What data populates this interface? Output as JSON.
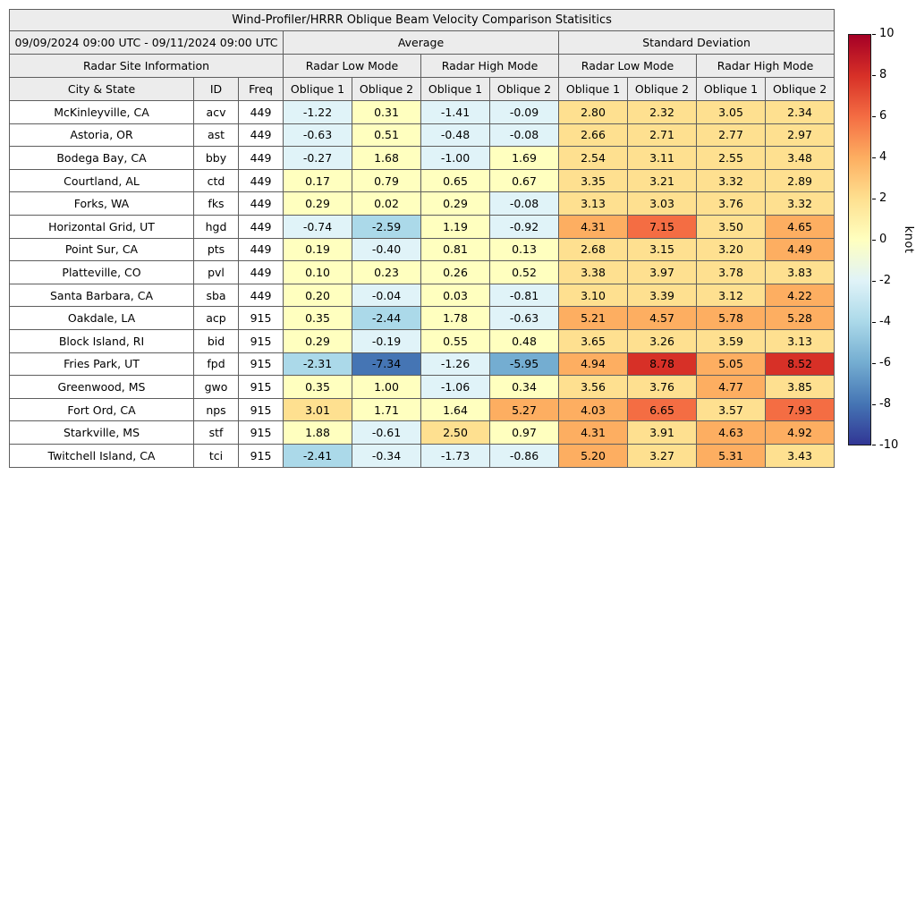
{
  "chart_data": {
    "type": "heatmap",
    "title": "Wind-Profiler/HRRR Oblique Beam Velocity Comparison Statisitics",
    "period": "09/09/2024 09:00 UTC - 09/11/2024 09:00 UTC",
    "site_info_header": "Radar Site Information",
    "group_headers": [
      "Average",
      "Standard Deviation"
    ],
    "mode_headers": [
      "Radar Low Mode",
      "Radar High Mode",
      "Radar Low Mode",
      "Radar High Mode"
    ],
    "columns": [
      "City & State",
      "ID",
      "Freq",
      "Oblique 1",
      "Oblique 2",
      "Oblique 1",
      "Oblique 2",
      "Oblique 1",
      "Oblique 2",
      "Oblique 1",
      "Oblique 2"
    ],
    "rows": [
      {
        "city": "McKinleyville, CA",
        "id": "acv",
        "freq": 449,
        "values": [
          -1.22,
          0.31,
          -1.41,
          -0.09,
          2.8,
          2.32,
          3.05,
          2.34
        ]
      },
      {
        "city": "Astoria, OR",
        "id": "ast",
        "freq": 449,
        "values": [
          -0.63,
          0.51,
          -0.48,
          -0.08,
          2.66,
          2.71,
          2.77,
          2.97
        ]
      },
      {
        "city": "Bodega Bay, CA",
        "id": "bby",
        "freq": 449,
        "values": [
          -0.27,
          1.68,
          -1.0,
          1.69,
          2.54,
          3.11,
          2.55,
          3.48
        ]
      },
      {
        "city": "Courtland, AL",
        "id": "ctd",
        "freq": 449,
        "values": [
          0.17,
          0.79,
          0.65,
          0.67,
          3.35,
          3.21,
          3.32,
          2.89
        ]
      },
      {
        "city": "Forks, WA",
        "id": "fks",
        "freq": 449,
        "values": [
          0.29,
          0.02,
          0.29,
          -0.08,
          3.13,
          3.03,
          3.76,
          3.32
        ]
      },
      {
        "city": "Horizontal Grid, UT",
        "id": "hgd",
        "freq": 449,
        "values": [
          -0.74,
          -2.59,
          1.19,
          -0.92,
          4.31,
          7.15,
          3.5,
          4.65
        ]
      },
      {
        "city": "Point Sur, CA",
        "id": "pts",
        "freq": 449,
        "values": [
          0.19,
          -0.4,
          0.81,
          0.13,
          2.68,
          3.15,
          3.2,
          4.49
        ]
      },
      {
        "city": "Platteville, CO",
        "id": "pvl",
        "freq": 449,
        "values": [
          0.1,
          0.23,
          0.26,
          0.52,
          3.38,
          3.97,
          3.78,
          3.83
        ]
      },
      {
        "city": "Santa Barbara, CA",
        "id": "sba",
        "freq": 449,
        "values": [
          0.2,
          -0.04,
          0.03,
          -0.81,
          3.1,
          3.39,
          3.12,
          4.22
        ]
      },
      {
        "city": "Oakdale, LA",
        "id": "acp",
        "freq": 915,
        "values": [
          0.35,
          -2.44,
          1.78,
          -0.63,
          5.21,
          4.57,
          5.78,
          5.28
        ]
      },
      {
        "city": "Block Island, RI",
        "id": "bid",
        "freq": 915,
        "values": [
          0.29,
          -0.19,
          0.55,
          0.48,
          3.65,
          3.26,
          3.59,
          3.13
        ]
      },
      {
        "city": "Fries Park, UT",
        "id": "fpd",
        "freq": 915,
        "values": [
          -2.31,
          -7.34,
          -1.26,
          -5.95,
          4.94,
          8.78,
          5.05,
          8.52
        ]
      },
      {
        "city": "Greenwood, MS",
        "id": "gwo",
        "freq": 915,
        "values": [
          0.35,
          1.0,
          -1.06,
          0.34,
          3.56,
          3.76,
          4.77,
          3.85
        ]
      },
      {
        "city": "Fort Ord, CA",
        "id": "nps",
        "freq": 915,
        "values": [
          3.01,
          1.71,
          1.64,
          5.27,
          4.03,
          6.65,
          3.57,
          7.93
        ]
      },
      {
        "city": "Starkville, MS",
        "id": "stf",
        "freq": 915,
        "values": [
          1.88,
          -0.61,
          2.5,
          0.97,
          4.31,
          3.91,
          4.63,
          4.92
        ]
      },
      {
        "city": "Twitchell Island, CA",
        "id": "tci",
        "freq": 915,
        "values": [
          -2.41,
          -0.34,
          -1.73,
          -0.86,
          5.2,
          3.27,
          5.31,
          3.43
        ]
      }
    ],
    "colorbar": {
      "label": "knot",
      "min": -10,
      "max": 10,
      "bin_size": 2,
      "ticks": [
        10,
        8,
        6,
        4,
        2,
        0,
        -2,
        -4,
        -6,
        -8,
        -10
      ],
      "colormap": [
        "#313695",
        "#4575b4",
        "#74add1",
        "#abd9e9",
        "#e0f3f8",
        "#ffffbf",
        "#fee090",
        "#fdae61",
        "#f46d43",
        "#d73027",
        "#a50026"
      ]
    },
    "header_bg": "#ececec",
    "grid": true,
    "legend_position": "right"
  }
}
